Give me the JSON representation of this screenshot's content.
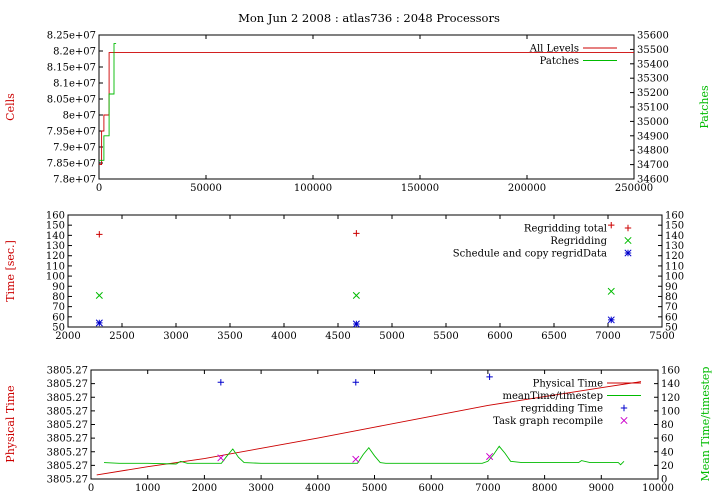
{
  "chart_data": [
    {
      "type": "line",
      "title": "Mon Jun 2 2008 : atlas736 : 2048 Processors",
      "ylabel": "Cells",
      "y2label": "Patches",
      "xlim": [
        0,
        250000
      ],
      "ylim": [
        78000000,
        82500000
      ],
      "y2lim": [
        34600,
        35600
      ],
      "xticks": [
        "0",
        "50000",
        "100000",
        "150000",
        "200000",
        "250000"
      ],
      "yticks": [
        "7.8e+07",
        "7.85e+07",
        "7.9e+07",
        "7.95e+07",
        "8e+07",
        "8.05e+07",
        "8.1e+07",
        "8.15e+07",
        "8.2e+07",
        "8.25e+07"
      ],
      "y2ticks": [
        "34600",
        "34700",
        "34800",
        "34900",
        "35000",
        "35100",
        "35200",
        "35300",
        "35400",
        "35500",
        "35600"
      ],
      "legend_position": "top-right",
      "series": [
        {
          "name": "All Levels",
          "axis": "y",
          "color": "#cc0000",
          "step": true,
          "x": [
            0,
            1200,
            1200,
            2300,
            2300,
            4700,
            4700,
            7000,
            7000,
            250000
          ],
          "y": [
            78450000,
            78450000,
            79500000,
            79500000,
            80000000,
            80000000,
            81950000,
            81950000,
            81950000,
            81950000
          ]
        },
        {
          "name": "Patches",
          "axis": "y2",
          "color": "#00bb00",
          "step": true,
          "x": [
            0,
            2300,
            2300,
            4700,
            4700,
            7000,
            7000,
            8000
          ],
          "y": [
            34730,
            34730,
            34900,
            34900,
            35190,
            35190,
            35540,
            35540
          ]
        }
      ]
    },
    {
      "type": "scatter",
      "ylabel": "Time [sec.]",
      "xlim": [
        2000,
        7500
      ],
      "ylim": [
        50,
        160
      ],
      "y2lim": [
        50,
        160
      ],
      "xticks": [
        "2000",
        "2500",
        "3000",
        "3500",
        "4000",
        "4500",
        "5000",
        "5500",
        "6000",
        "6500",
        "7000",
        "7500"
      ],
      "yticks": [
        "50",
        "60",
        "70",
        "80",
        "90",
        "100",
        "110",
        "120",
        "130",
        "140",
        "150",
        "160"
      ],
      "y2ticks": [
        "50",
        "60",
        "70",
        "80",
        "90",
        "100",
        "110",
        "120",
        "130",
        "140",
        "150",
        "160"
      ],
      "legend_position": "top-right",
      "series": [
        {
          "name": "Regridding total",
          "marker": "plus",
          "color": "#cc0000",
          "x": [
            2290,
            4670,
            7030
          ],
          "y": [
            141,
            142,
            150
          ]
        },
        {
          "name": "Regridding",
          "marker": "cross",
          "color": "#00bb00",
          "x": [
            2290,
            4670,
            7030
          ],
          "y": [
            81,
            81,
            85
          ]
        },
        {
          "name": "Schedule and copy regridData",
          "marker": "star",
          "color": "#0000cc",
          "x": [
            2290,
            4670,
            7030
          ],
          "y": [
            54,
            53,
            57
          ]
        }
      ]
    },
    {
      "type": "line",
      "ylabel": "Physical Time",
      "y2label": "Mean Time/timestep",
      "xlim": [
        0,
        10000
      ],
      "ylim": [
        0,
        160
      ],
      "y2lim": [
        0,
        160
      ],
      "xticks": [
        "0",
        "1000",
        "2000",
        "3000",
        "4000",
        "5000",
        "6000",
        "7000",
        "8000",
        "9000",
        "10000"
      ],
      "yticks": [
        "3805.27",
        "3805.27",
        "3805.27",
        "3805.27",
        "3805.27",
        "3805.27",
        "3805.27",
        "3805.27",
        "3805.27"
      ],
      "y2ticks": [
        "0",
        "20",
        "40",
        "60",
        "80",
        "100",
        "120",
        "140",
        "160"
      ],
      "legend_position": "top-right",
      "series": [
        {
          "name": "Physical Time",
          "axis": "y",
          "color": "#cc0000",
          "x": [
            100,
            1000,
            2000,
            3000,
            4000,
            5000,
            6000,
            7000,
            8000,
            9000,
            9700
          ],
          "y": [
            6,
            18,
            30,
            45,
            60,
            76,
            92,
            108,
            121,
            134,
            143
          ]
        },
        {
          "name": "meanTime/timestep",
          "axis": "y2",
          "color": "#00bb00",
          "x": [
            230,
            500,
            1000,
            1500,
            1580,
            1700,
            2000,
            2300,
            2400,
            2500,
            2600,
            2700,
            3000,
            4000,
            4600,
            4700,
            4800,
            4900,
            5000,
            5100,
            5200,
            6000,
            6900,
            7000,
            7100,
            7200,
            7300,
            7400,
            7600,
            8000,
            8600,
            8650,
            8800,
            9000,
            9300,
            9340,
            9400
          ],
          "y": [
            24,
            23,
            23,
            22,
            26,
            23,
            23,
            23,
            34,
            44,
            32,
            24,
            23,
            23,
            23,
            23,
            36,
            46,
            34,
            24,
            23,
            23,
            23,
            26,
            36,
            48,
            38,
            26,
            24,
            24,
            24,
            27,
            24,
            24,
            24,
            21,
            26
          ]
        },
        {
          "name": "regridding Time",
          "axis": "y2",
          "marker": "plus",
          "color": "#0000cc",
          "x": [
            2290,
            4670,
            7030
          ],
          "y": [
            142,
            142,
            150
          ]
        },
        {
          "name": "Task graph recompile",
          "axis": "y2",
          "marker": "cross",
          "color": "#cc00cc",
          "x": [
            2290,
            4670,
            7030
          ],
          "y": [
            31,
            29,
            33
          ]
        }
      ]
    }
  ]
}
